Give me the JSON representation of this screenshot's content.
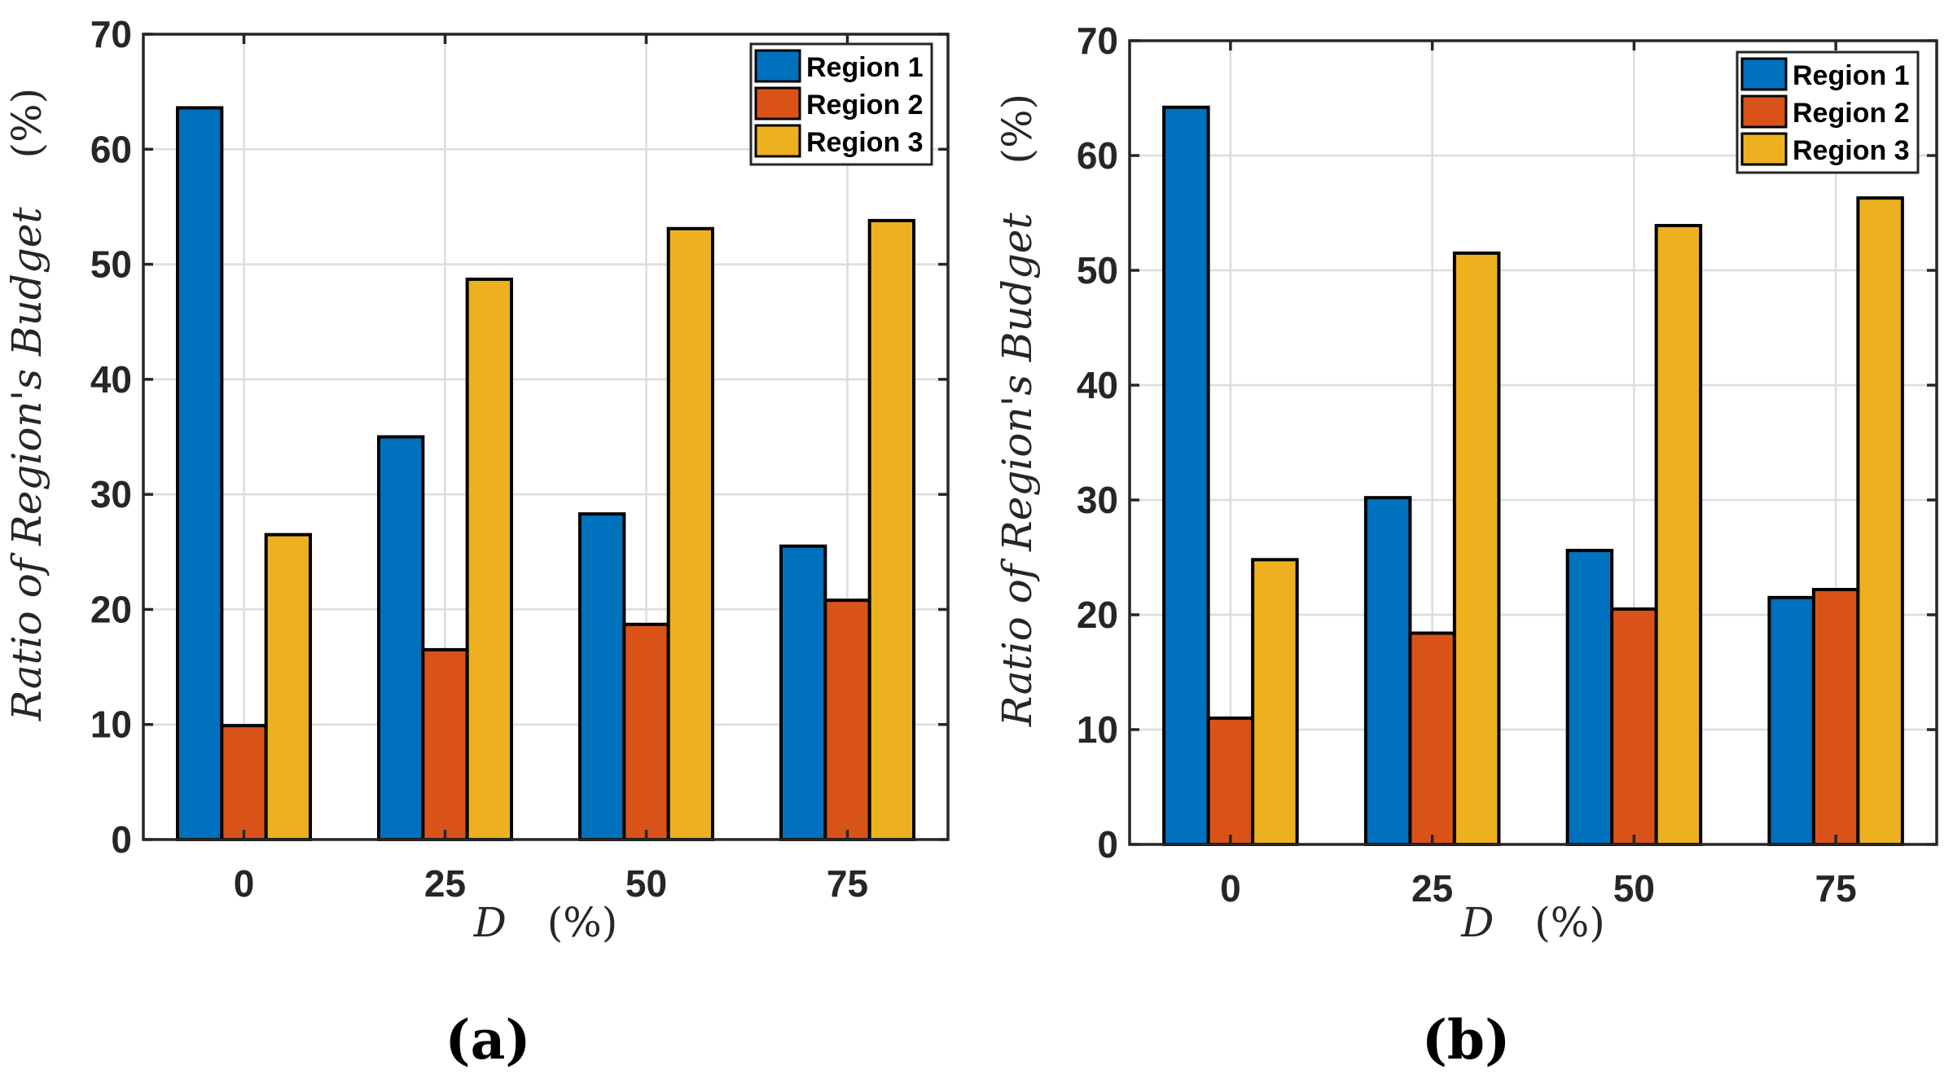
{
  "colors": {
    "region1": "#0072BD",
    "region2": "#D95319",
    "region3": "#EDB120",
    "grid": "#DCDCDC",
    "axis": "#262626"
  },
  "chart_data": [
    {
      "type": "bar",
      "panel_label": "(a)",
      "categories": [
        "0",
        "25",
        "50",
        "75"
      ],
      "series": [
        {
          "name": "Region 1",
          "values": [
            63.6,
            35.0,
            28.3,
            25.5
          ]
        },
        {
          "name": "Region 2",
          "values": [
            9.9,
            16.5,
            18.7,
            20.8
          ]
        },
        {
          "name": "Region 3",
          "values": [
            26.5,
            48.7,
            53.1,
            53.8
          ]
        }
      ],
      "xlabel_var": "D",
      "xlabel_unit": "(%)",
      "ylabel_var": "Ratio of Region's Budget",
      "ylabel_unit": "(%)",
      "ylim": [
        0,
        70
      ],
      "yticks": [
        "0",
        "10",
        "20",
        "30",
        "40",
        "50",
        "60",
        "70"
      ],
      "grid": true,
      "legend": "top-right"
    },
    {
      "type": "bar",
      "panel_label": "(b)",
      "categories": [
        "0",
        "25",
        "50",
        "75"
      ],
      "series": [
        {
          "name": "Region 1",
          "values": [
            64.2,
            30.2,
            25.6,
            21.5
          ]
        },
        {
          "name": "Region 2",
          "values": [
            11.0,
            18.4,
            20.5,
            22.2
          ]
        },
        {
          "name": "Region 3",
          "values": [
            24.8,
            51.5,
            53.9,
            56.3
          ]
        }
      ],
      "xlabel_var": "D",
      "xlabel_unit": "(%)",
      "ylabel_var": "Ratio of Region's Budget",
      "ylabel_unit": "(%)",
      "ylim": [
        0,
        70
      ],
      "yticks": [
        "0",
        "10",
        "20",
        "30",
        "40",
        "50",
        "60",
        "70"
      ],
      "grid": true,
      "legend": "top-right"
    }
  ]
}
